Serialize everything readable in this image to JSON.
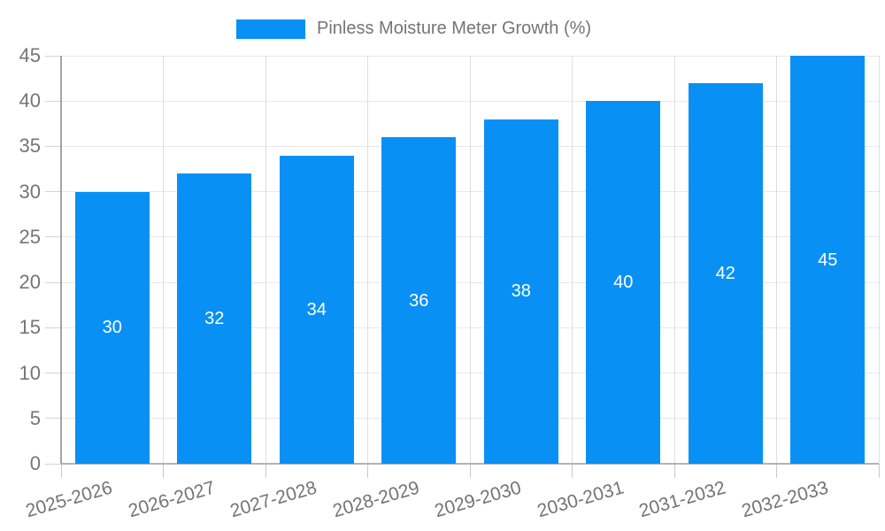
{
  "legend": {
    "label": "Pinless Moisture Meter Growth (%)"
  },
  "chart_data": {
    "type": "bar",
    "title": "",
    "xlabel": "",
    "ylabel": "",
    "categories": [
      "2025-2026",
      "2026-2027",
      "2027-2028",
      "2028-2029",
      "2029-2030",
      "2030-2031",
      "2031-2032",
      "2032-2033"
    ],
    "values": [
      30,
      32,
      34,
      36,
      38,
      40,
      42,
      45
    ],
    "series_name": "Pinless Moisture Meter Growth (%)",
    "ylim": [
      0,
      45
    ],
    "yticks": [
      0,
      5,
      10,
      15,
      20,
      25,
      30,
      35,
      40,
      45
    ],
    "grid": true,
    "legend_position": "top",
    "bar_color": "#0990f4",
    "bar_label_color": "#ffffff",
    "axis_text_color": "#757575"
  }
}
